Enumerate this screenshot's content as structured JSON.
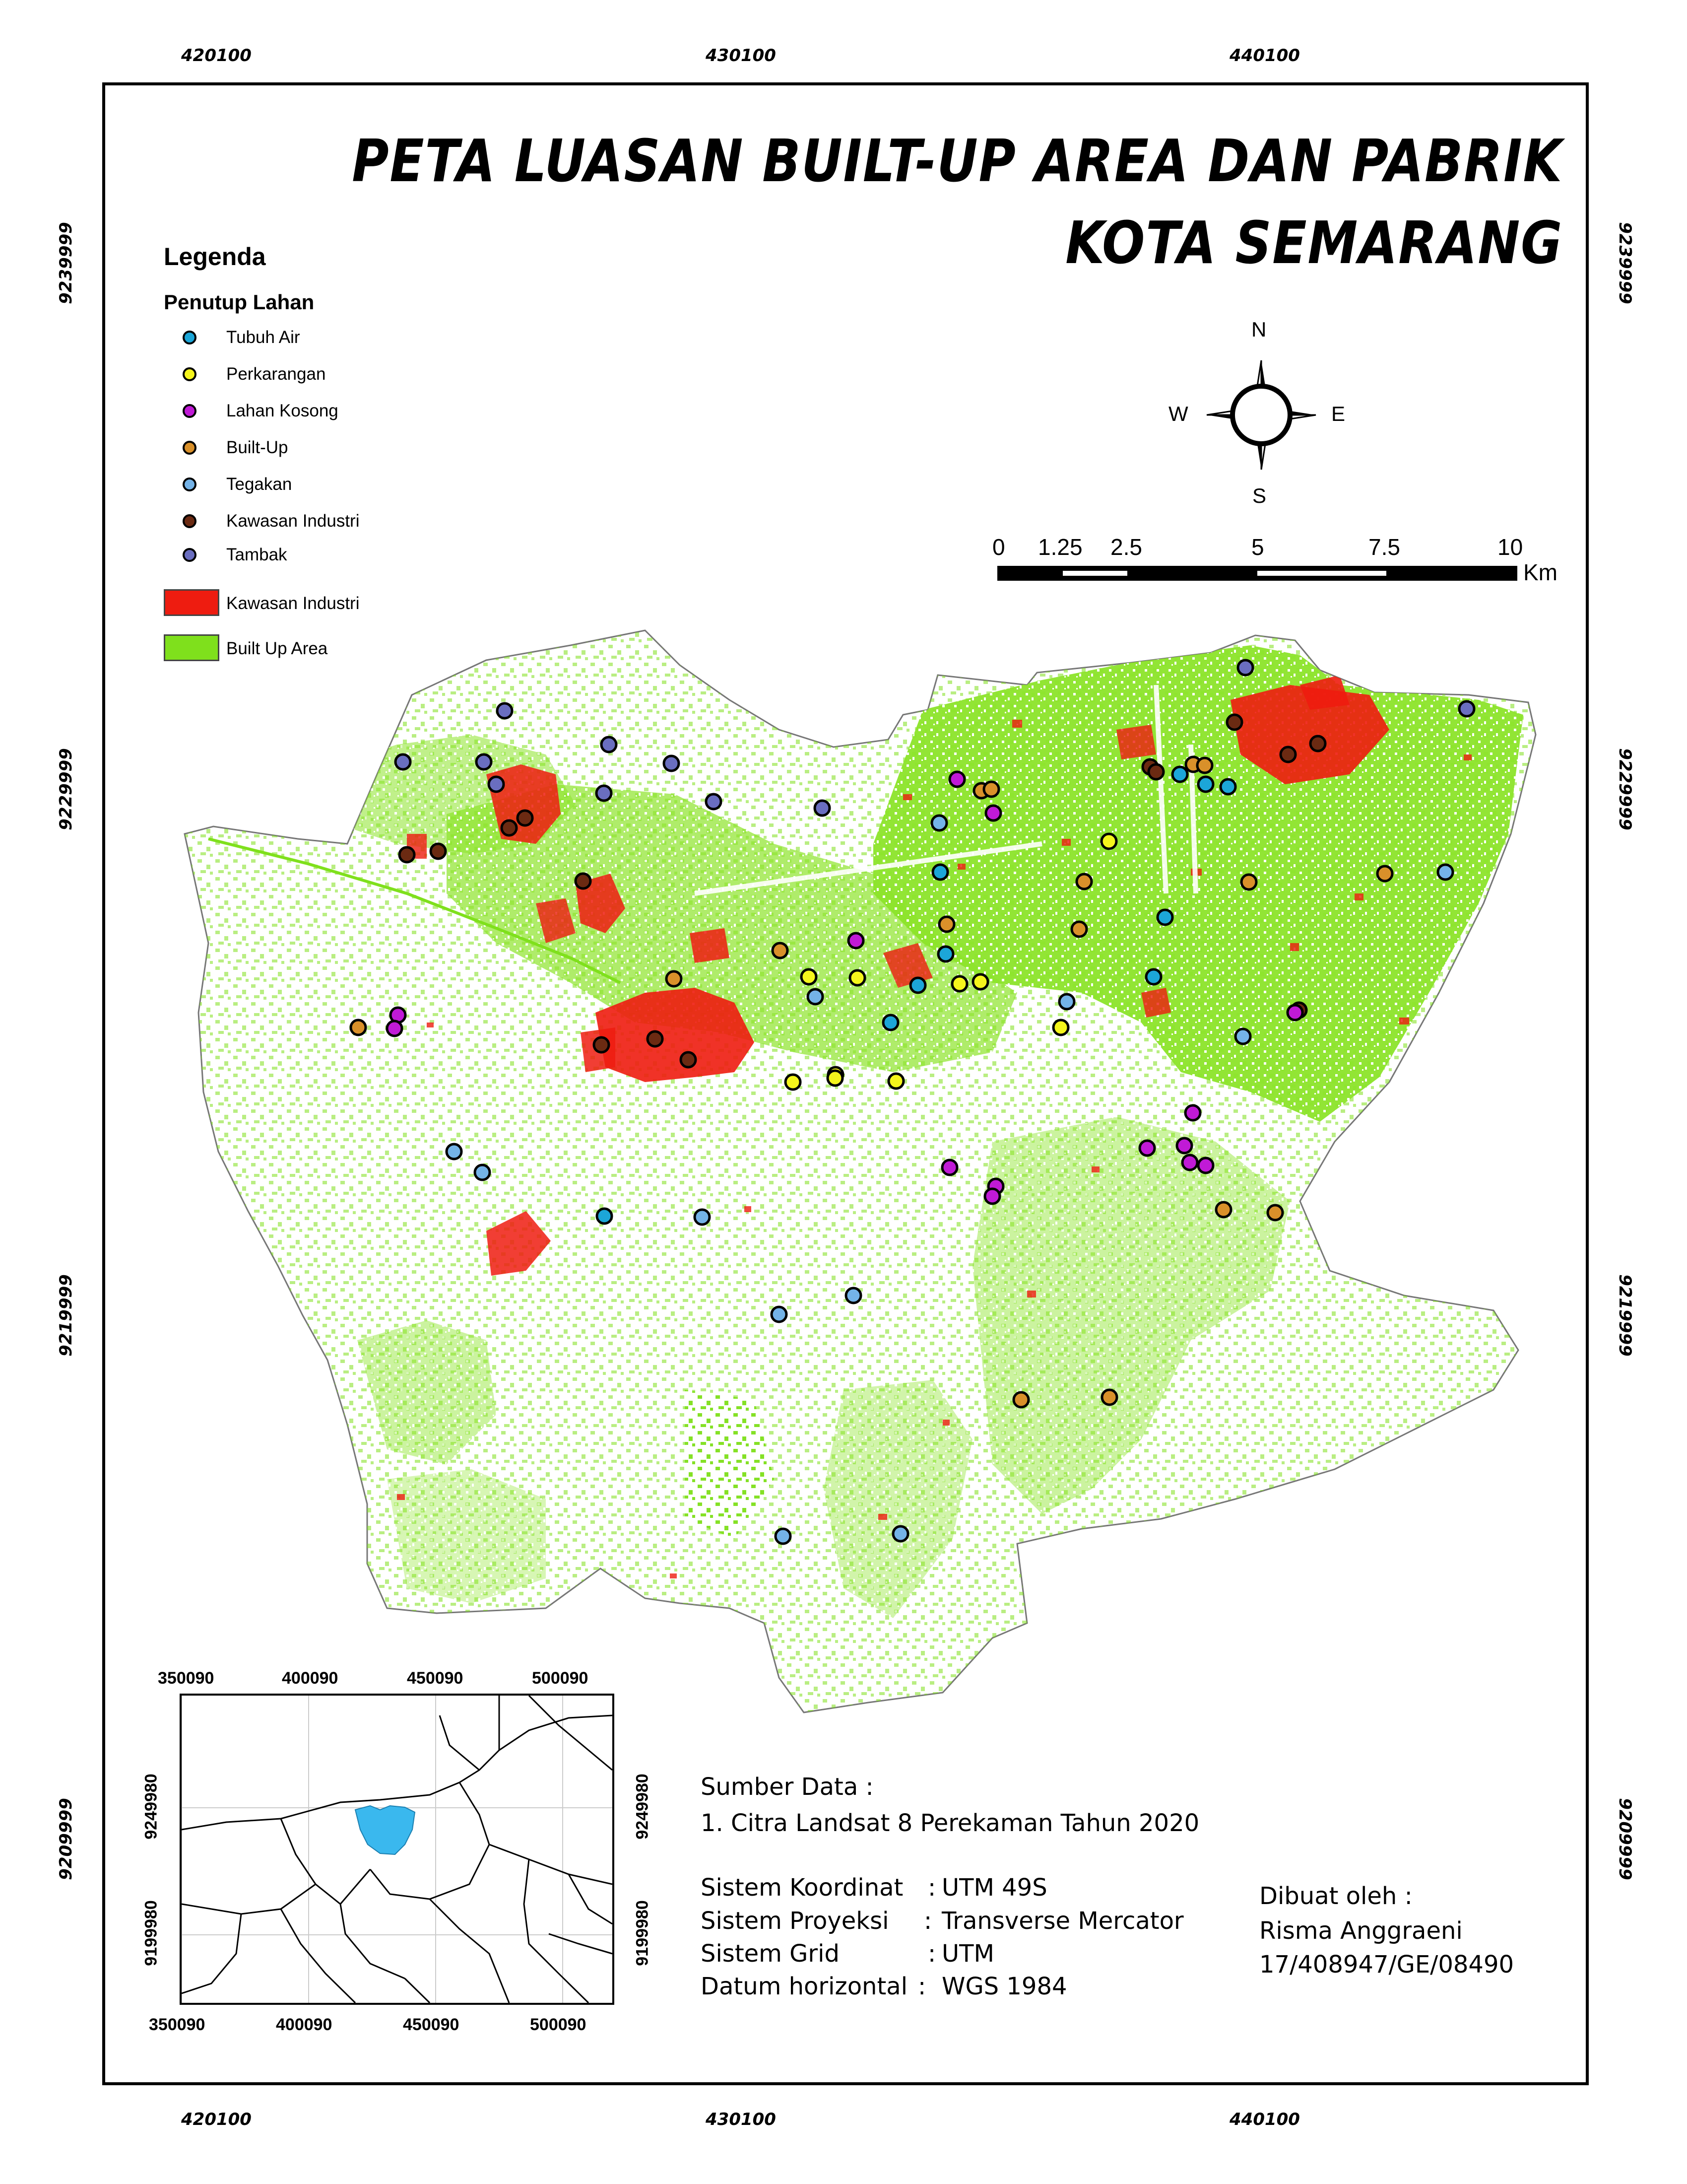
{
  "title": {
    "line1": "PETA LUASAN BUILT-UP AREA DAN PABRIK",
    "line2": "KOTA SEMARANG"
  },
  "grid": {
    "top_x": [
      "420100",
      "430100",
      "440100"
    ],
    "bottom_x": [
      "420100",
      "430100",
      "440100"
    ],
    "left_y": [
      "9239999",
      "9229999",
      "9219999",
      "9209999"
    ],
    "right_y": [
      "9239999",
      "9229999",
      "9219999",
      "9209999"
    ]
  },
  "legend": {
    "heading": "Legenda",
    "subheading": "Penutup Lahan",
    "points": [
      {
        "label": "Tubuh Air",
        "color": "#1ca6d8"
      },
      {
        "label": "Perkarangan",
        "color": "#f5f51c"
      },
      {
        "label": "Lahan Kosong",
        "color": "#c01ad6"
      },
      {
        "label": "Built-Up",
        "color": "#d9902a"
      },
      {
        "label": "Tegakan",
        "color": "#74b3e8"
      },
      {
        "label": "Kawasan Industri",
        "color": "#6b2a12"
      },
      {
        "label": "Tambak",
        "color": "#6a6ec0"
      }
    ],
    "areas": [
      {
        "label": "Kawasan Industri",
        "color": "#ee1c10"
      },
      {
        "label": "Built Up Area",
        "color": "#7fe01c"
      }
    ]
  },
  "compass": {
    "n": "N",
    "s": "S",
    "e": "E",
    "w": "W"
  },
  "scale_bar": {
    "ticks": [
      "0",
      "1.25",
      "2.5",
      "5",
      "7.5",
      "10"
    ],
    "unit": "Km"
  },
  "sources": {
    "heading": "Sumber Data :",
    "item1": "1. Citra Landsat 8 Perekaman Tahun 2020",
    "rows": [
      {
        "key": "Sistem Koordinat",
        "sep": ":",
        "value": "UTM 49S"
      },
      {
        "key": "Sistem Proyeksi",
        "sep": ":",
        "value": "Transverse Mercator"
      },
      {
        "key": "Sistem Grid",
        "sep": ":",
        "value": "UTM"
      },
      {
        "key": "Datum horizontal",
        "sep": ":",
        "value": "WGS 1984"
      }
    ]
  },
  "author": {
    "label": "Dibuat oleh :",
    "name": "Risma Anggraeni",
    "id": "17/408947/GE/08490"
  },
  "inset": {
    "x_top": [
      "350090",
      "400090",
      "450090",
      "500090"
    ],
    "x_bottom": [
      "350090",
      "400090",
      "450090",
      "500090"
    ],
    "y_left": [
      "9249980",
      "9199980"
    ],
    "y_right": [
      "9249980",
      "9199980"
    ],
    "highlight_color": "#3ab8ee"
  }
}
